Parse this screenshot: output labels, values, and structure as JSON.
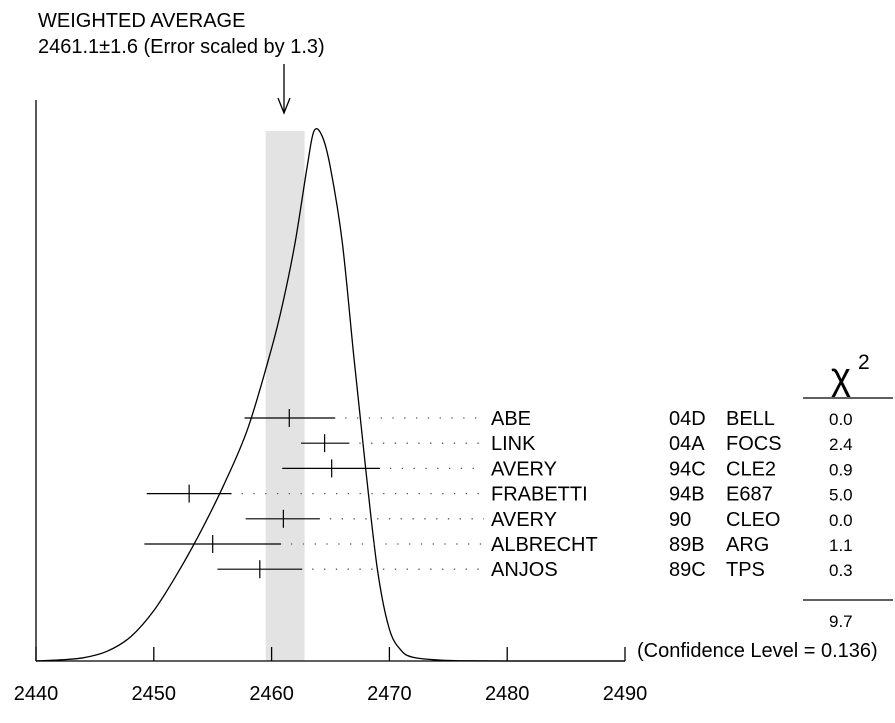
{
  "header": {
    "title": "WEIGHTED AVERAGE",
    "subtitle": "2461.1±1.6 (Error scaled by 1.3)"
  },
  "chart_data": {
    "type": "ideogram",
    "x_axis": {
      "range": [
        2440,
        2490
      ],
      "ticks": [
        2440,
        2450,
        2460,
        2470,
        2480,
        2490
      ],
      "tick_labels": [
        "2440",
        "2450",
        "2460",
        "2470",
        "2480",
        "2490"
      ]
    },
    "weighted_average": {
      "value": 2461.1,
      "error": 1.6,
      "error_scale": 1.3,
      "band": [
        2459.5,
        2462.8
      ]
    },
    "measurements": [
      {
        "author": "ABE",
        "ref": "04D",
        "experiment": "BELL",
        "value": 2461.5,
        "low": 2457.7,
        "high": 2465.4,
        "chi2": "0.0"
      },
      {
        "author": "LINK",
        "ref": "04A",
        "experiment": "FOCS",
        "value": 2464.5,
        "low": 2462.5,
        "high": 2466.6,
        "chi2": "2.4"
      },
      {
        "author": "AVERY",
        "ref": "94C",
        "experiment": "CLE2",
        "value": 2465.1,
        "low": 2460.9,
        "high": 2469.2,
        "chi2": "0.9"
      },
      {
        "author": "FRABETTI",
        "ref": "94B",
        "experiment": "E687",
        "value": 2453.0,
        "low": 2449.4,
        "high": 2456.6,
        "chi2": "5.0"
      },
      {
        "author": "AVERY",
        "ref": "90",
        "experiment": "CLEO",
        "value": 2461.0,
        "low": 2457.8,
        "high": 2464.1,
        "chi2": "0.0"
      },
      {
        "author": "ALBRECHT",
        "ref": "89B",
        "experiment": "ARG",
        "value": 2455.0,
        "low": 2449.2,
        "high": 2460.8,
        "chi2": "1.1"
      },
      {
        "author": "ANJOS",
        "ref": "89C",
        "experiment": "TPS",
        "value": 2459.0,
        "low": 2455.4,
        "high": 2462.6,
        "chi2": "0.3"
      }
    ],
    "chi2_header": "χ",
    "chi2_superscript": "2",
    "chi2_total": "9.7",
    "confidence_level": "(Confidence Level = 0.136)",
    "ideogram_curve": [
      [
        2440,
        0.0
      ],
      [
        2442,
        0.002
      ],
      [
        2444,
        0.006
      ],
      [
        2446,
        0.018
      ],
      [
        2448,
        0.045
      ],
      [
        2450,
        0.095
      ],
      [
        2452,
        0.165
      ],
      [
        2454,
        0.245
      ],
      [
        2456,
        0.335
      ],
      [
        2458,
        0.44
      ],
      [
        2460,
        0.59
      ],
      [
        2461,
        0.68
      ],
      [
        2462,
        0.79
      ],
      [
        2463,
        0.93
      ],
      [
        2463.6,
        1.0
      ],
      [
        2464.3,
        0.99
      ],
      [
        2465,
        0.93
      ],
      [
        2466,
        0.79
      ],
      [
        2467,
        0.57
      ],
      [
        2468,
        0.36
      ],
      [
        2469,
        0.17
      ],
      [
        2470,
        0.06
      ],
      [
        2471,
        0.02
      ],
      [
        2472,
        0.007
      ],
      [
        2474,
        0.002
      ],
      [
        2476,
        0.0005
      ],
      [
        2480,
        0.0
      ],
      [
        2490,
        0.0
      ]
    ]
  }
}
